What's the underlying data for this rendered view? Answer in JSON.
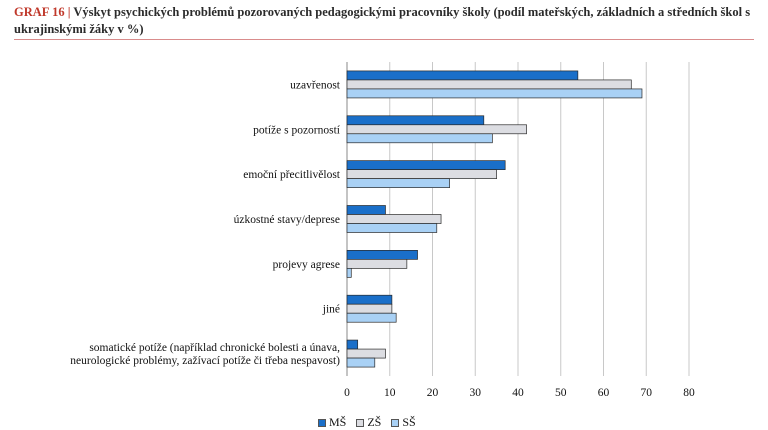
{
  "title": {
    "label": "GRAF 16 |",
    "text": "Výskyt psychických problémů pozorovaných pedagogickými pracovníky školy (podíl mateřských, základních a středních škol s ukrajinskými žáky v %)"
  },
  "colors": {
    "MŠ": "#1a6fc9",
    "ZŠ": "#dcdde2",
    "SŠ": "#a9d1f5"
  },
  "chart_data": {
    "type": "bar",
    "orientation": "horizontal",
    "categories": [
      [
        "uzavřenost"
      ],
      [
        "potíže s pozorností"
      ],
      [
        "emoční přecitlivělost"
      ],
      [
        "úzkostné stavy/deprese"
      ],
      [
        "projevy agrese"
      ],
      [
        "jiné"
      ],
      [
        "somatické potíže (například chronické bolesti a únava,",
        "neurologické problémy, zažívací potíže či třeba nespavost)"
      ]
    ],
    "series": [
      {
        "name": "MŠ",
        "values": [
          54,
          32,
          37,
          9,
          16.5,
          10.5,
          2.5
        ]
      },
      {
        "name": "ZŠ",
        "values": [
          66.5,
          42,
          35,
          22,
          14,
          10.5,
          9
        ]
      },
      {
        "name": "SŠ",
        "values": [
          69,
          34,
          24,
          21,
          1,
          11.5,
          6.5
        ]
      }
    ],
    "xlim": [
      0,
      80
    ],
    "xticks": [
      0,
      10,
      20,
      30,
      40,
      50,
      60,
      70,
      80
    ],
    "grid": true,
    "legend": "bottom",
    "xlabel": "",
    "ylabel": ""
  }
}
